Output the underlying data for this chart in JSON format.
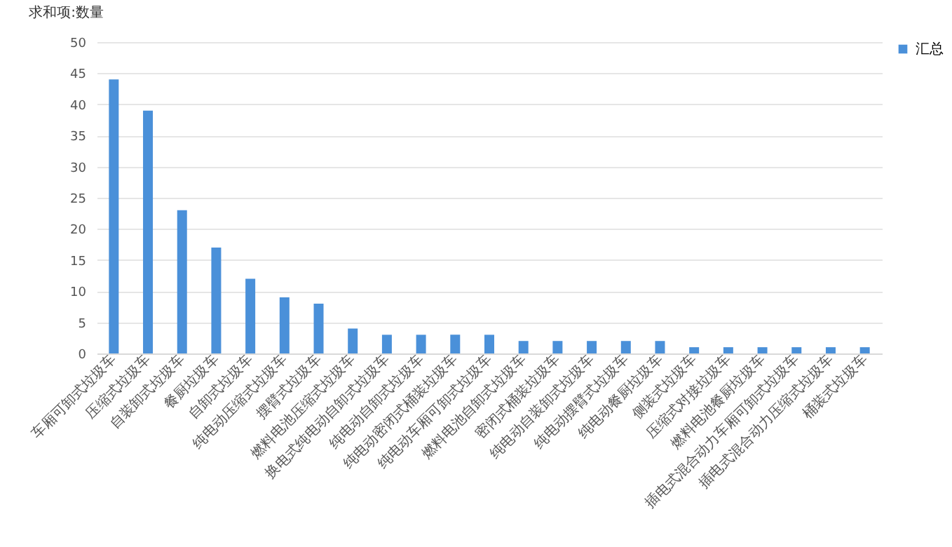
{
  "chart_data": {
    "type": "bar",
    "title": "求和项:数量",
    "categories": [
      "车厢可卸式垃圾车",
      "压缩式垃圾车",
      "自装卸式垃圾车",
      "餐厨垃圾车",
      "自卸式垃圾车",
      "纯电动压缩式垃圾车",
      "摆臂式垃圾车",
      "燃料电池压缩式垃圾车",
      "换电式纯电动自卸式垃圾车",
      "纯电动自卸式垃圾车",
      "纯电动密闭式桶装垃圾车",
      "纯电动车厢可卸式垃圾车",
      "燃料电池自卸式垃圾车",
      "密闭式桶装垃圾车",
      "纯电动自装卸式垃圾车",
      "纯电动摆臂式垃圾车",
      "纯电动餐厨垃圾车",
      "侧装式垃圾车",
      "压缩式对接垃圾车",
      "燃料电池餐厨垃圾车",
      "插电式混合动力车厢可卸式垃圾车",
      "插电式混合动力压缩式垃圾车",
      "桶装式垃圾车"
    ],
    "series": [
      {
        "name": "汇总",
        "color": "#4a90d9",
        "values": [
          44,
          39,
          23,
          17,
          12,
          9,
          8,
          4,
          3,
          3,
          3,
          3,
          2,
          2,
          2,
          2,
          2,
          1,
          1,
          1,
          1,
          1,
          1
        ]
      }
    ],
    "ylim": [
      0,
      50
    ],
    "yticks": [
      0,
      5,
      10,
      15,
      20,
      25,
      30,
      35,
      40,
      45,
      50
    ],
    "grid": "y",
    "legend": "right"
  }
}
